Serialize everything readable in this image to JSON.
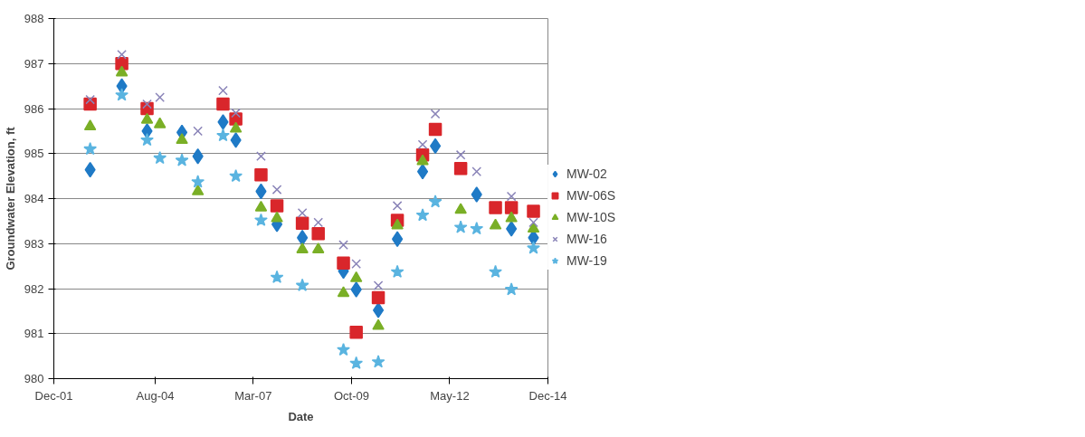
{
  "chart_data": {
    "type": "scatter",
    "xlabel": "Date",
    "ylabel": "Groundwater Elevation, ft",
    "x": [
      "2002-11",
      "2003-09",
      "2004-05",
      "2004-09",
      "2005-04",
      "2005-09",
      "2006-05",
      "2006-09",
      "2007-05",
      "2007-10",
      "2008-06",
      "2008-11",
      "2009-07",
      "2009-11",
      "2010-06",
      "2010-12",
      "2011-08",
      "2011-12",
      "2012-08",
      "2013-01",
      "2013-07",
      "2013-12",
      "2014-07"
    ],
    "series": [
      {
        "name": "MW-02",
        "color": "#1f7ac6",
        "marker": "diamond",
        "values": [
          984.64,
          986.5,
          985.5,
          null,
          985.47,
          984.94,
          985.7,
          985.3,
          984.16,
          983.43,
          983.13,
          null,
          982.39,
          981.98,
          981.52,
          983.1,
          984.6,
          985.17,
          null,
          984.09,
          null,
          983.33,
          983.13
        ]
      },
      {
        "name": "MW-06S",
        "color": "#d9262b",
        "marker": "square",
        "values": [
          986.1,
          987.0,
          986.0,
          null,
          null,
          null,
          986.1,
          985.77,
          984.53,
          983.84,
          983.45,
          983.22,
          982.57,
          981.03,
          981.8,
          983.52,
          984.97,
          985.54,
          984.67,
          null,
          983.8,
          983.8,
          983.72
        ]
      },
      {
        "name": "MW-10S",
        "color": "#7aaf26",
        "marker": "triangle",
        "values": [
          985.6,
          986.8,
          985.75,
          985.65,
          985.3,
          984.16,
          null,
          985.55,
          983.8,
          983.56,
          982.87,
          982.87,
          981.9,
          982.23,
          981.17,
          983.4,
          984.83,
          null,
          983.75,
          null,
          983.4,
          983.56,
          983.33
        ]
      },
      {
        "name": "MW-16",
        "color": "#8a84b8",
        "marker": "cross",
        "values": [
          986.2,
          987.2,
          986.1,
          986.25,
          null,
          985.5,
          986.4,
          985.9,
          984.94,
          984.2,
          983.68,
          983.47,
          982.97,
          982.55,
          982.07,
          983.84,
          985.2,
          985.88,
          984.97,
          984.6,
          null,
          984.05,
          983.47
        ]
      },
      {
        "name": "MW-19",
        "color": "#5ab4e0",
        "marker": "star",
        "values": [
          985.1,
          986.3,
          985.3,
          984.9,
          984.85,
          984.37,
          985.4,
          984.5,
          983.52,
          982.25,
          982.07,
          null,
          980.64,
          980.34,
          980.37,
          982.37,
          983.63,
          983.93,
          983.36,
          983.33,
          982.37,
          981.98,
          982.9
        ]
      }
    ],
    "xlim": [
      "2001-12-01",
      "2014-12-01"
    ],
    "xticks": [
      {
        "value": "2001-12-01",
        "label": "Dec-01"
      },
      {
        "value": "2004-08-01",
        "label": "Aug-04"
      },
      {
        "value": "2007-03-01",
        "label": "Mar-07"
      },
      {
        "value": "2009-10-01",
        "label": "Oct-09"
      },
      {
        "value": "2012-05-01",
        "label": "May-12"
      },
      {
        "value": "2014-12-01",
        "label": "Dec-14"
      }
    ],
    "ylim": [
      980,
      988
    ],
    "yticks": [
      980,
      981,
      982,
      983,
      984,
      985,
      986,
      987,
      988
    ],
    "grid": "y",
    "legend": "right"
  }
}
